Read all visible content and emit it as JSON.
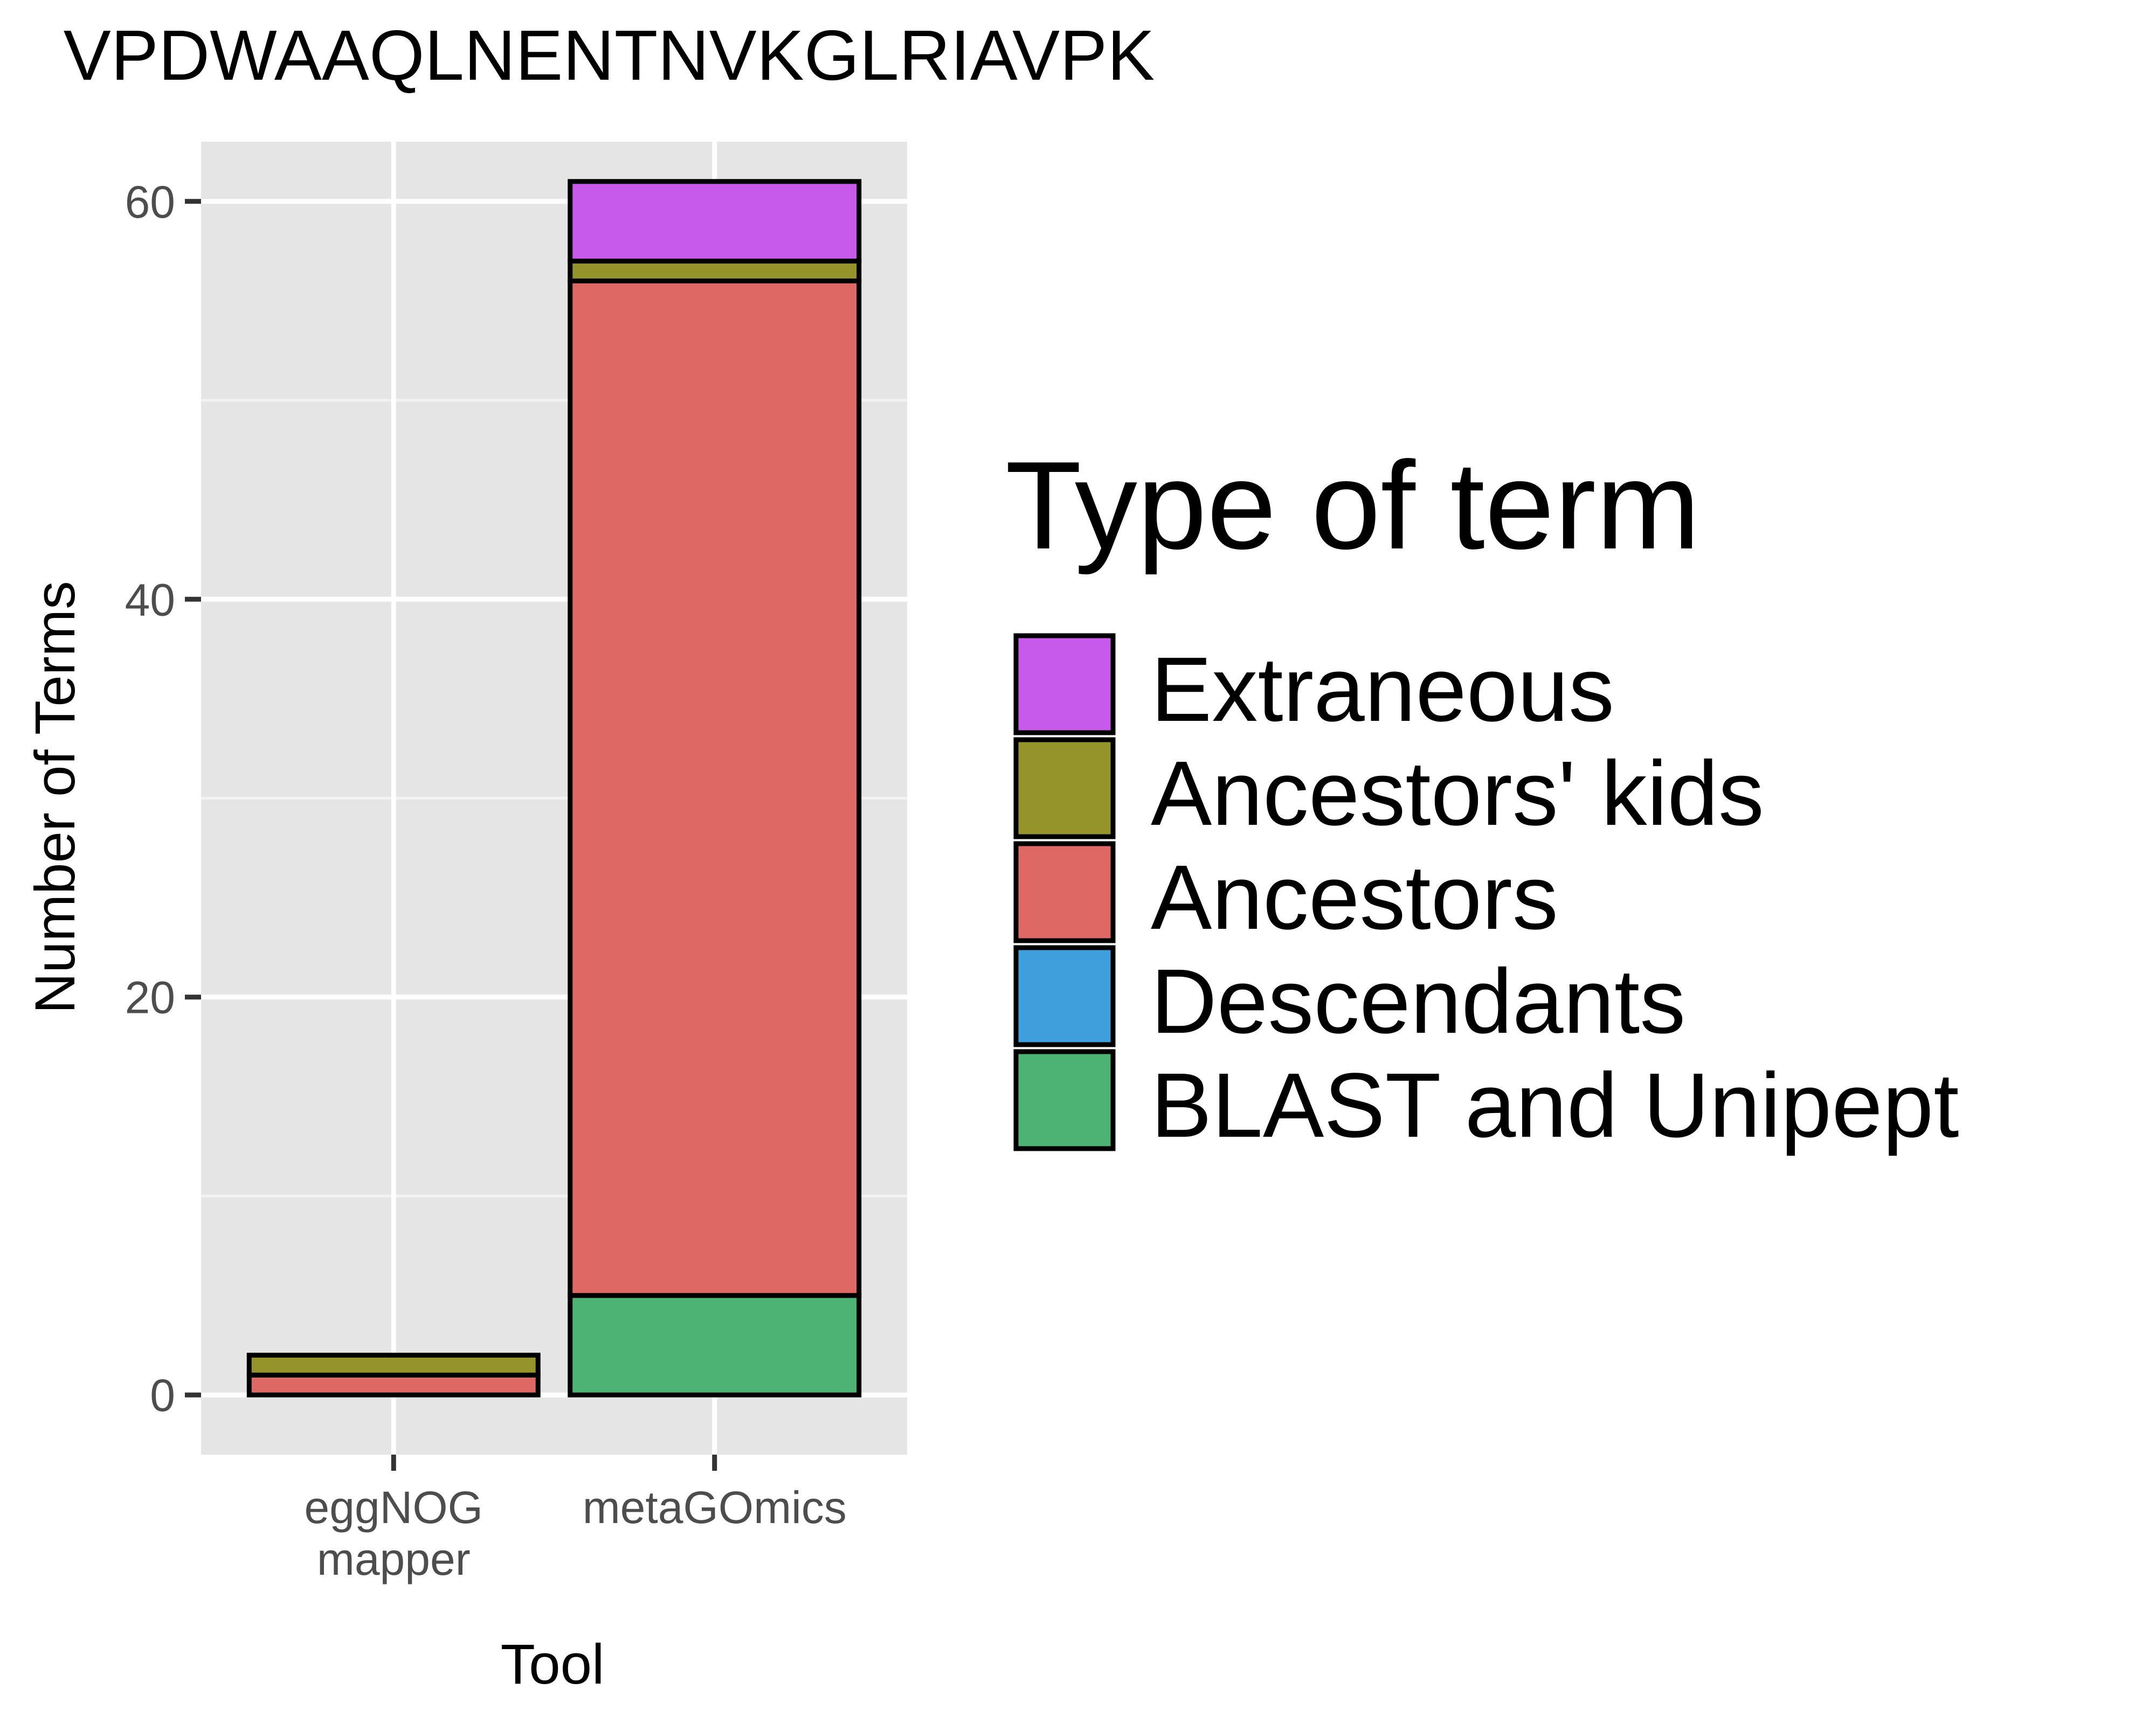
{
  "chart_data": {
    "type": "bar",
    "stacked": true,
    "title": "VPDWAAQLNENTNVKGLRIAVPK",
    "xlabel": "Tool",
    "ylabel": "Number of Terms",
    "categories": [
      "eggNOG\nmapper",
      "metaGOmics"
    ],
    "ylim": [
      -3,
      63
    ],
    "yticks": [
      0,
      20,
      40,
      60
    ],
    "grid": true,
    "legend_position": "right",
    "legend_title": "Type of term",
    "series": [
      {
        "name": "BLAST and Unipept",
        "color": "#4DB375",
        "values": [
          0,
          5
        ]
      },
      {
        "name": "Descendants",
        "color": "#3F9EDC",
        "values": [
          0,
          0
        ]
      },
      {
        "name": "Ancestors",
        "color": "#DE6864",
        "values": [
          1,
          51
        ]
      },
      {
        "name": "Ancestors' kids",
        "color": "#94942A",
        "values": [
          1,
          1
        ]
      },
      {
        "name": "Extraneous",
        "color": "#C75AEA",
        "values": [
          0,
          4
        ]
      }
    ],
    "legend_order": [
      "Extraneous",
      "Ancestors' kids",
      "Ancestors",
      "Descendants",
      "BLAST and Unipept"
    ]
  }
}
